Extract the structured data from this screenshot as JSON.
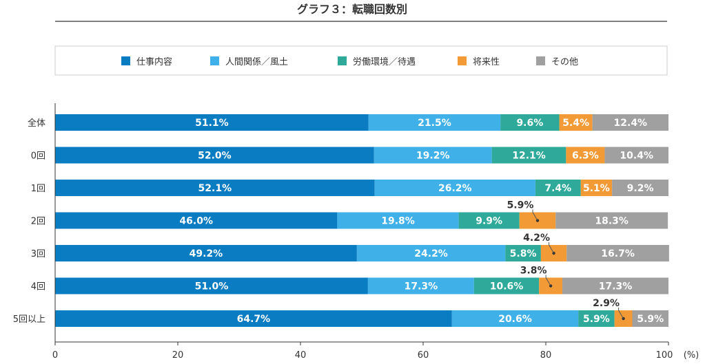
{
  "chart_data": {
    "type": "bar",
    "orientation": "horizontal",
    "stacked": true,
    "title": "グラフ３：転職回数別",
    "categories": [
      "全体",
      "0回",
      "1回",
      "2回",
      "3回",
      "4回",
      "5回以上"
    ],
    "series": [
      {
        "name": "仕事内容",
        "color": "#0a7cc1",
        "values": [
          51.1,
          52.0,
          52.1,
          46.0,
          49.2,
          51.0,
          64.7
        ]
      },
      {
        "name": "人間関係／風土",
        "color": "#3fb0e8",
        "values": [
          21.5,
          19.2,
          26.2,
          19.8,
          24.2,
          17.3,
          20.6
        ]
      },
      {
        "name": "労働環境／待遇",
        "color": "#2ea99a",
        "values": [
          9.6,
          12.1,
          7.4,
          9.9,
          5.8,
          10.6,
          5.9
        ]
      },
      {
        "name": "将来性",
        "color": "#f29a36",
        "values": [
          5.4,
          6.3,
          5.1,
          5.9,
          4.2,
          3.8,
          2.9
        ]
      },
      {
        "name": "その他",
        "color": "#a0a0a0",
        "values": [
          12.4,
          10.4,
          9.2,
          18.3,
          16.7,
          17.3,
          5.9
        ]
      }
    ],
    "data_labels": [
      [
        "51.1%",
        "21.5%",
        "9.6%",
        "5.4%",
        "12.4%"
      ],
      [
        "52.0%",
        "19.2%",
        "12.1%",
        "6.3%",
        "10.4%"
      ],
      [
        "52.1%",
        "26.2%",
        "7.4%",
        "5.1%",
        "9.2%"
      ],
      [
        "46.0%",
        "19.8%",
        "9.9%",
        "5.9%",
        "18.3%"
      ],
      [
        "49.2%",
        "24.2%",
        "5.8%",
        "4.2%",
        "16.7%"
      ],
      [
        "51.0%",
        "17.3%",
        "10.6%",
        "3.8%",
        "17.3%"
      ],
      [
        "64.7%",
        "20.6%",
        "5.9%",
        "2.9%",
        "5.9%"
      ]
    ],
    "callout_rows": [
      3,
      4,
      5,
      6
    ],
    "callout_series": 3,
    "xlim": [
      0,
      100
    ],
    "xticks": [
      "0",
      "20",
      "40",
      "60",
      "80",
      "100"
    ],
    "xunit": "(%)",
    "legend_position": "top"
  }
}
